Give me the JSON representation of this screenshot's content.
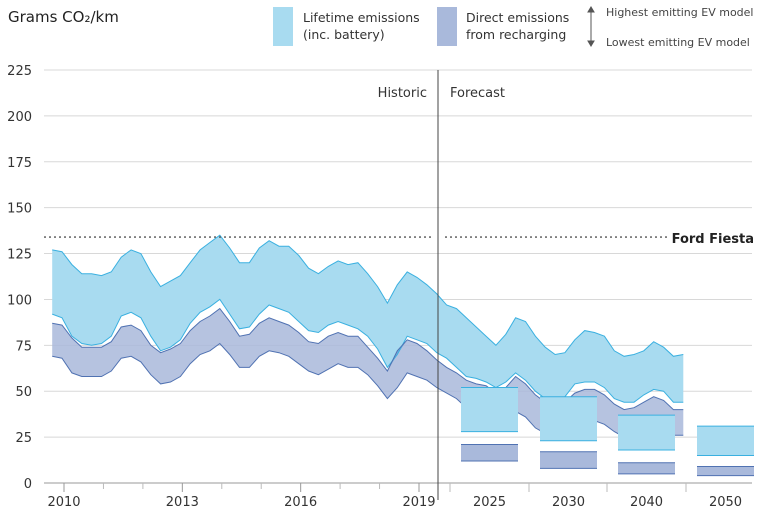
{
  "chart_data": {
    "type": "area",
    "ylabel": "Grams CO₂/km",
    "ylim": [
      0,
      225
    ],
    "yticks": [
      0,
      25,
      50,
      75,
      100,
      125,
      150,
      175,
      200,
      225
    ],
    "grid": "horizontal",
    "colors": {
      "lifetime_fill": "#a8dbf0",
      "lifetime_stroke": "#3ab0e0",
      "direct_fill": "#a9b9db",
      "direct_stroke": "#5072b2",
      "overlap_fill": "#6fa3d6",
      "grid": "#d8d8d8",
      "divider": "#444444"
    },
    "sections": {
      "historic": "Historic",
      "forecast": "Forecast"
    },
    "historic_xticks": [
      "2010",
      "2013",
      "2016",
      "2019"
    ],
    "reference_line": {
      "label": "Ford Fiesta",
      "value": 134
    },
    "legend": {
      "lifetime_line1": "Lifetime emissions",
      "lifetime_line2": "(inc. battery)",
      "direct_line1": "Direct emissions",
      "direct_line2": "from recharging",
      "highest": "Highest emitting EV model",
      "lowest": "Lowest emitting EV model"
    },
    "series": [
      {
        "name": "Lifetime emissions (inc. battery)",
        "x_year_start": 2009.7,
        "x_year_step": 0.25,
        "upper": [
          127,
          126,
          119,
          114,
          114,
          113,
          115,
          123,
          127,
          125,
          115,
          107,
          110,
          113,
          120,
          127,
          131,
          135,
          128,
          120,
          120,
          128,
          132,
          129,
          129,
          124,
          117,
          114,
          118,
          121,
          119,
          120,
          114,
          107,
          98,
          108,
          115,
          112,
          108,
          103,
          97,
          95,
          90,
          85,
          80,
          75,
          81,
          90,
          88,
          80,
          74,
          70,
          71,
          78,
          83,
          82,
          80,
          72,
          69,
          70,
          72,
          77,
          74,
          69,
          70
        ],
        "lower": [
          92,
          90,
          80,
          76,
          75,
          76,
          80,
          91,
          93,
          90,
          80,
          72,
          74,
          78,
          87,
          93,
          96,
          100,
          92,
          84,
          85,
          92,
          97,
          95,
          93,
          88,
          83,
          82,
          86,
          88,
          86,
          84,
          80,
          73,
          63,
          70,
          80,
          78,
          76,
          71,
          68,
          63,
          58,
          57,
          55,
          52,
          55,
          60,
          56,
          50,
          46,
          45,
          47,
          54,
          55,
          55,
          52,
          46,
          44,
          44,
          48,
          51,
          50,
          44,
          44
        ]
      },
      {
        "name": "Direct emissions from recharging",
        "x_year_start": 2009.7,
        "x_year_step": 0.25,
        "upper": [
          87,
          86,
          79,
          74,
          74,
          74,
          77,
          85,
          86,
          83,
          75,
          71,
          73,
          76,
          83,
          88,
          91,
          95,
          88,
          80,
          81,
          87,
          90,
          88,
          86,
          82,
          77,
          76,
          80,
          82,
          80,
          80,
          74,
          68,
          61,
          72,
          78,
          76,
          72,
          67,
          63,
          60,
          56,
          54,
          53,
          49,
          52,
          58,
          54,
          48,
          44,
          42,
          44,
          49,
          51,
          51,
          48,
          43,
          40,
          41,
          44,
          47,
          45,
          40,
          40
        ],
        "lower": [
          69,
          68,
          60,
          58,
          58,
          58,
          61,
          68,
          69,
          66,
          59,
          54,
          55,
          58,
          65,
          70,
          72,
          76,
          70,
          63,
          63,
          69,
          72,
          71,
          69,
          65,
          61,
          59,
          62,
          65,
          63,
          63,
          59,
          53,
          46,
          52,
          60,
          58,
          56,
          52,
          49,
          46,
          41,
          40,
          38,
          34,
          35,
          39,
          36,
          30,
          27,
          26,
          28,
          33,
          34,
          34,
          32,
          28,
          25,
          26,
          28,
          31,
          30,
          26,
          26
        ]
      }
    ],
    "forecast": [
      {
        "year": "2025",
        "lifetime": [
          28,
          52
        ],
        "direct": [
          12,
          21
        ]
      },
      {
        "year": "2030",
        "lifetime": [
          23,
          47
        ],
        "direct": [
          8,
          17
        ]
      },
      {
        "year": "2040",
        "lifetime": [
          18,
          37
        ],
        "direct": [
          5,
          11
        ]
      },
      {
        "year": "2050",
        "lifetime": [
          15,
          31
        ],
        "direct": [
          4,
          9
        ]
      }
    ]
  }
}
